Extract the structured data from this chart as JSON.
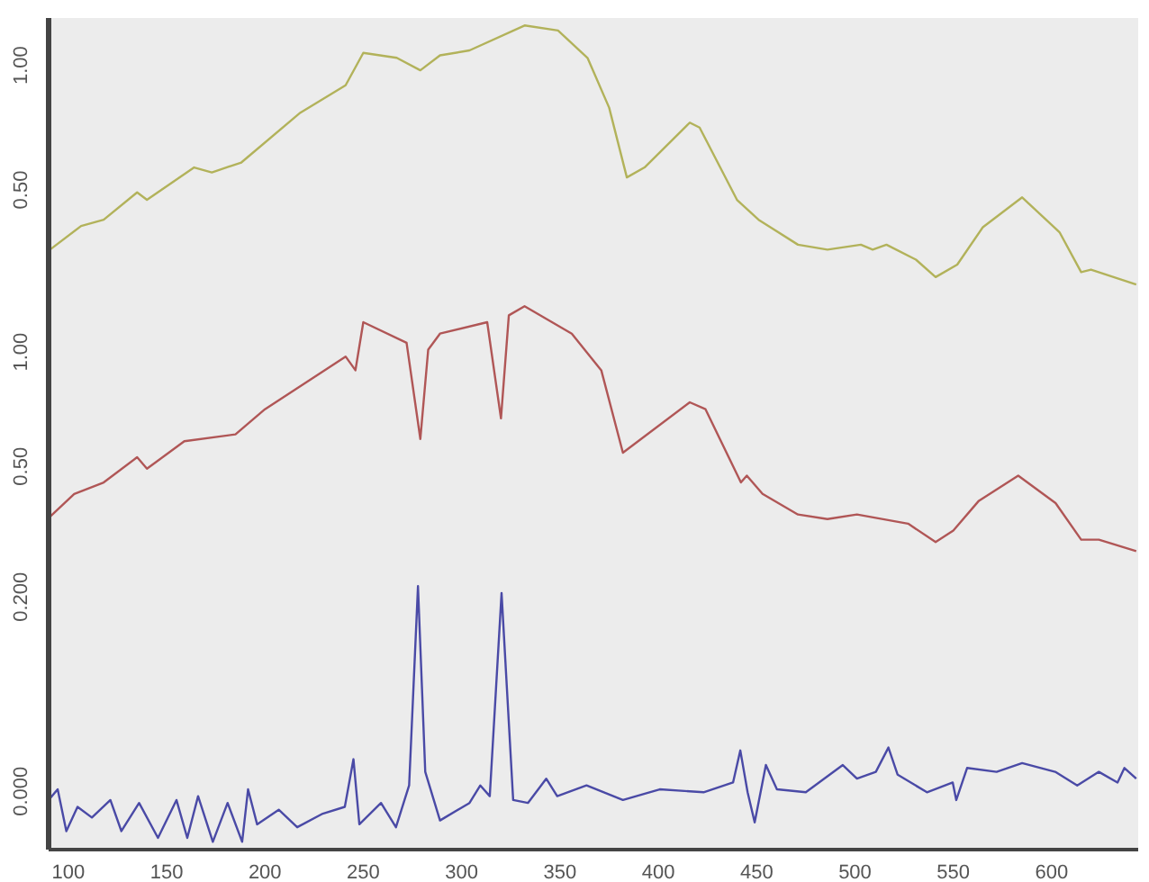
{
  "chart_data": [
    {
      "type": "line",
      "xlim": [
        90,
        644
      ],
      "ylim": [
        0.07,
        1.19
      ],
      "yticks": [
        {
          "value": 0.5,
          "label": "0.50"
        },
        {
          "value": 1,
          "label": "1.00"
        }
      ],
      "tick_labels": "y",
      "grid": false,
      "series": [
        {
          "color": "#b2b25a",
          "x": [
            90.7,
            106.5,
            118,
            135,
            140,
            164,
            173,
            188,
            218,
            241,
            250,
            267,
            279,
            289,
            304,
            332,
            349,
            364,
            375,
            384,
            393,
            416,
            421,
            440,
            451,
            471,
            486,
            503,
            509,
            516,
            531,
            541,
            552,
            565,
            585,
            604,
            615,
            620,
            643
          ],
          "values": [
            0.26,
            0.355,
            0.38,
            0.49,
            0.46,
            0.59,
            0.57,
            0.61,
            0.81,
            0.92,
            1.05,
            1.03,
            0.98,
            1.04,
            1.06,
            1.16,
            1.14,
            1.03,
            0.83,
            0.55,
            0.59,
            0.77,
            0.75,
            0.46,
            0.38,
            0.28,
            0.26,
            0.28,
            0.26,
            0.28,
            0.22,
            0.15,
            0.2,
            0.35,
            0.47,
            0.33,
            0.17,
            0.18,
            0.12
          ]
        }
      ]
    },
    {
      "type": "line",
      "xlim": [
        90,
        644
      ],
      "ylim": [
        0.1,
        1.24
      ],
      "yticks": [
        {
          "value": 0.5,
          "label": "0.50"
        },
        {
          "value": 1,
          "label": "1.00"
        }
      ],
      "tick_labels": "y",
      "grid": false,
      "series": [
        {
          "color": "#b05656",
          "x": [
            90.7,
            103,
            118,
            135,
            140,
            159,
            185,
            200,
            241,
            246,
            250,
            272,
            279,
            283,
            289,
            313,
            320,
            324,
            332,
            356,
            371,
            382,
            416,
            424,
            442,
            445,
            453,
            471,
            486,
            501,
            527,
            541,
            550,
            563,
            583,
            602,
            615,
            624,
            643
          ],
          "values": [
            0.28,
            0.38,
            0.43,
            0.54,
            0.49,
            0.61,
            0.64,
            0.75,
            0.98,
            0.92,
            1.13,
            1.04,
            0.62,
            1.01,
            1.08,
            1.13,
            0.71,
            1.16,
            1.2,
            1.08,
            0.92,
            0.56,
            0.78,
            0.75,
            0.43,
            0.46,
            0.38,
            0.29,
            0.27,
            0.29,
            0.25,
            0.17,
            0.22,
            0.35,
            0.46,
            0.34,
            0.18,
            0.18,
            0.13
          ]
        }
      ]
    },
    {
      "type": "line",
      "xlim": [
        90,
        644
      ],
      "ylim": [
        -0.06,
        0.24
      ],
      "xticks": [
        100,
        150,
        200,
        250,
        300,
        350,
        400,
        450,
        500,
        550,
        600
      ],
      "yticks": [
        {
          "value": 0,
          "label": "0.000"
        },
        {
          "value": 0.2,
          "label": "0.200"
        }
      ],
      "grid": false,
      "series": [
        {
          "color": "#4a4aa6",
          "x": [
            90,
            94.6,
            99,
            104.7,
            112,
            121.4,
            127,
            136,
            145.6,
            155,
            160.5,
            166,
            173.5,
            181,
            188.4,
            191.4,
            196,
            207,
            216.4,
            229.4,
            240.6,
            245,
            248,
            259,
            266.6,
            273.3,
            277.8,
            281.5,
            289,
            304,
            309.5,
            314.3,
            320.3,
            326.2,
            333.7,
            343,
            348.6,
            363.5,
            382,
            400.7,
            423,
            438,
            441.7,
            445.4,
            449,
            454.7,
            460.3,
            475,
            493.8,
            501,
            510.6,
            517,
            521.7,
            536.6,
            549.7,
            551.5,
            557,
            572,
            585,
            601.8,
            613,
            624,
            633.5,
            637,
            643
          ],
          "values": [
            -0.009,
            0.002,
            -0.041,
            -0.016,
            -0.027,
            -0.009,
            -0.041,
            -0.012,
            -0.048,
            -0.009,
            -0.048,
            -0.005,
            -0.052,
            -0.012,
            -0.052,
            0.002,
            -0.034,
            -0.019,
            -0.037,
            -0.023,
            -0.016,
            0.033,
            -0.034,
            -0.012,
            -0.037,
            0.006,
            0.211,
            0.02,
            -0.03,
            -0.012,
            0.006,
            -0.005,
            0.204,
            -0.009,
            -0.012,
            0.013,
            -0.005,
            0.006,
            -0.009,
            0.002,
            -0.001,
            0.009,
            0.042,
            -0.001,
            -0.032,
            0.027,
            0.002,
            -0.001,
            0.027,
            0.013,
            0.02,
            0.045,
            0.017,
            -0.001,
            0.009,
            -0.009,
            0.024,
            0.02,
            0.029,
            0.02,
            0.006,
            0.02,
            0.009,
            0.024,
            0.013
          ]
        }
      ]
    }
  ]
}
